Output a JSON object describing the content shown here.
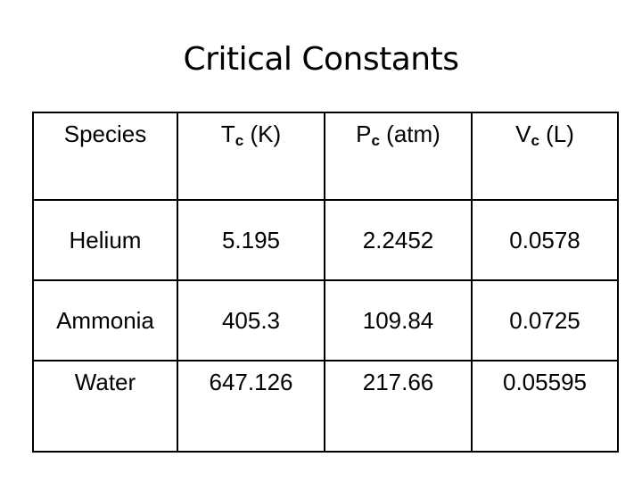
{
  "title": "Critical Constants",
  "table": {
    "headers": [
      {
        "main": "Species",
        "sub": "",
        "unit": ""
      },
      {
        "main": "T",
        "sub": "c",
        "unit": " (K)"
      },
      {
        "main": "P",
        "sub": "c",
        "unit": " (atm)"
      },
      {
        "main": "V",
        "sub": "c",
        "unit": " (L)"
      }
    ],
    "rows": [
      [
        "Helium",
        "5.195",
        "2.2452",
        "0.0578"
      ],
      [
        "Ammonia",
        "405.3",
        "109.84",
        "0.0725"
      ],
      [
        "Water",
        "647.126",
        "217.66",
        "0.05595"
      ]
    ]
  }
}
